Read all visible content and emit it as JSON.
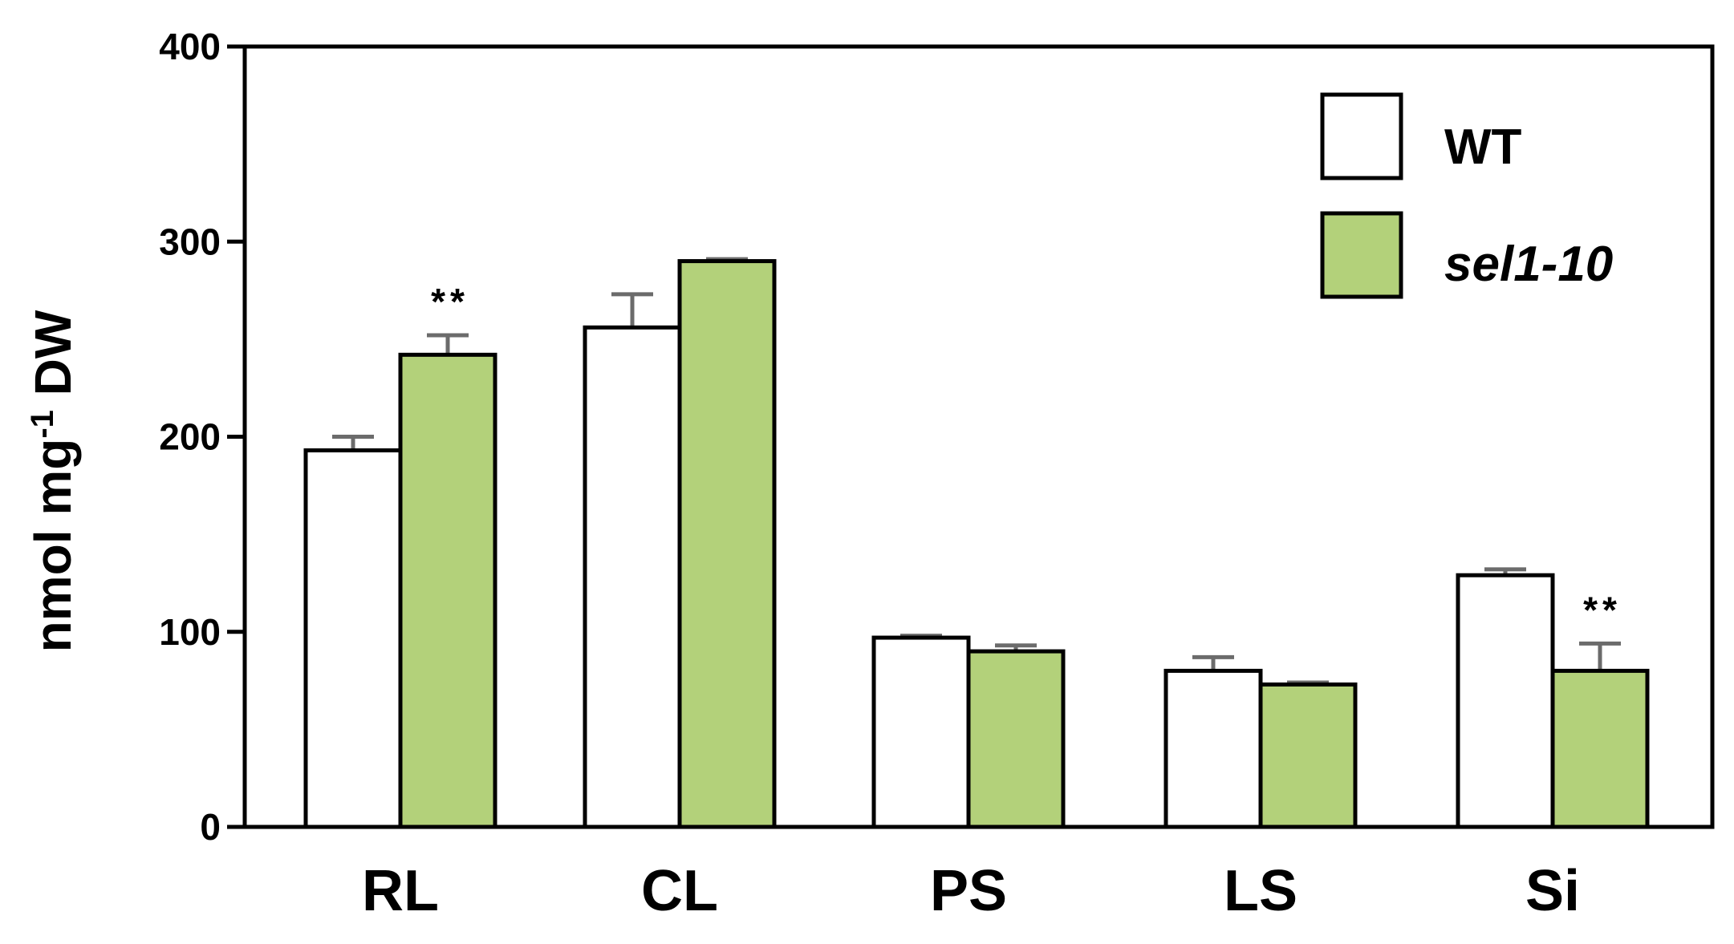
{
  "chart_data": {
    "type": "bar",
    "categories": [
      "RL",
      "CL",
      "PS",
      "LS",
      "Si"
    ],
    "series": [
      {
        "name": "WT",
        "values": [
          193,
          256,
          97,
          80,
          129
        ],
        "errors": [
          7,
          17,
          1,
          7,
          3
        ],
        "color": "#ffffff",
        "italic": false
      },
      {
        "name": "sel1-10",
        "values": [
          242,
          290,
          90,
          73,
          80
        ],
        "errors": [
          10,
          1,
          3,
          1,
          14
        ],
        "color": "#b3d17a",
        "italic": true
      }
    ],
    "significance": [
      {
        "category": "RL",
        "series": "sel1-10",
        "label": "**"
      },
      {
        "category": "Si",
        "series": "sel1-10",
        "label": "**"
      }
    ],
    "ylabel_main": "nmol mg",
    "ylabel_sup": "-1",
    "ylabel_tail": " DW",
    "ylim": [
      0,
      400
    ],
    "yticks": [
      "0",
      "100",
      "200",
      "300",
      "400"
    ],
    "legend_position": "top-right",
    "error_bar_color": "#6b6b6b",
    "grid": false
  }
}
